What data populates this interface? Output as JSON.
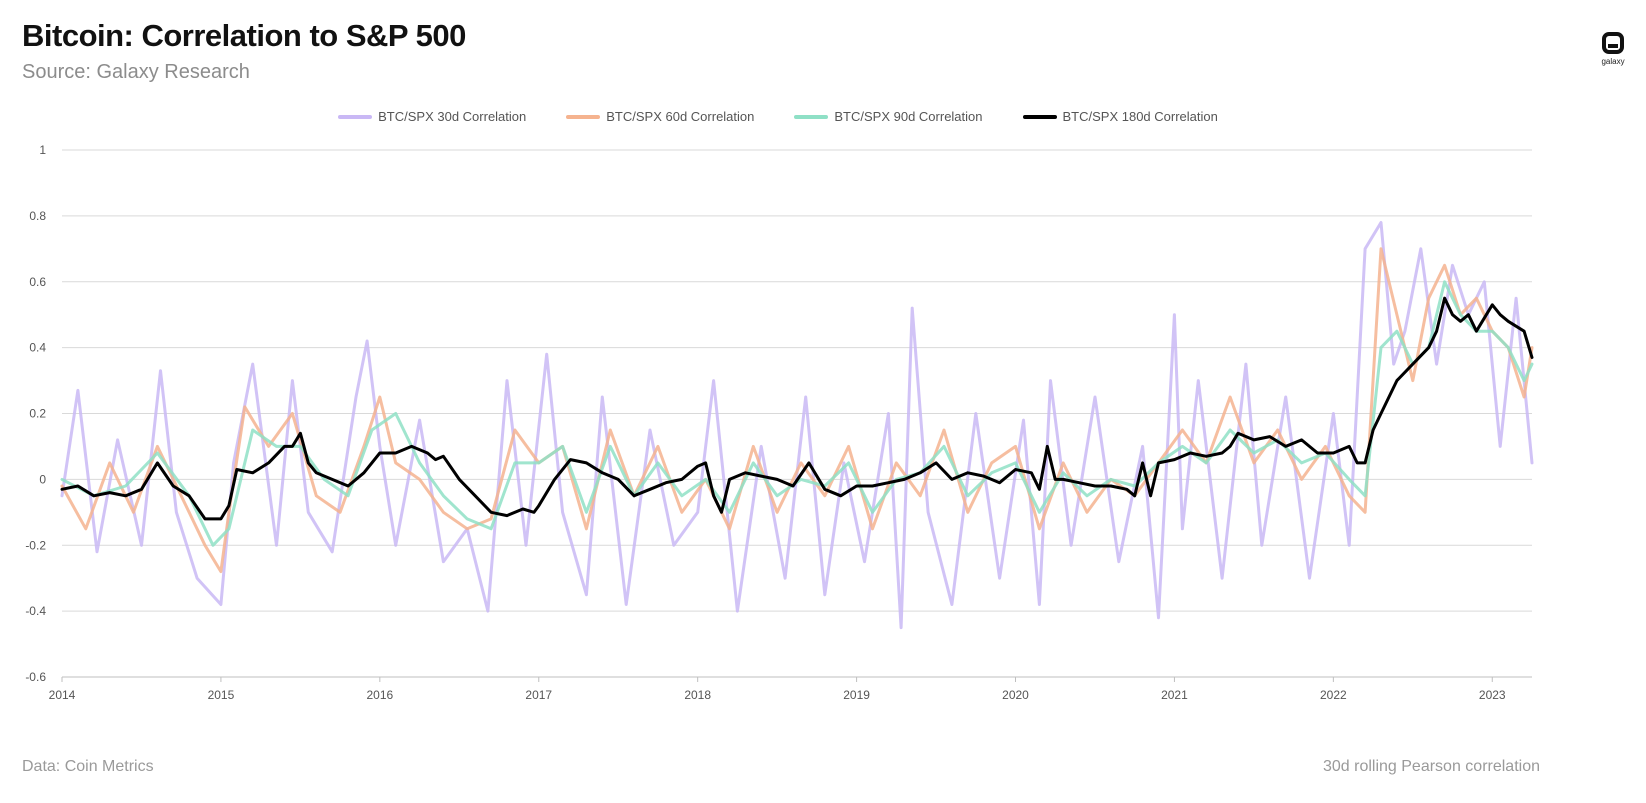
{
  "header": {
    "title": "Bitcoin: Correlation to S&P 500",
    "subtitle": "Source: Galaxy Research",
    "logo_text": "galaxy"
  },
  "footer": {
    "left": "Data: Coin Metrics",
    "right": "30d rolling Pearson correlation"
  },
  "colors": {
    "grid": "#d9d9d9",
    "axis": "#bfbfbf"
  },
  "chart_data": {
    "type": "line",
    "title": "Bitcoin: Correlation to S&P 500",
    "xlabel": "",
    "ylabel": "",
    "xlim": [
      2014,
      2023.25
    ],
    "ylim": [
      -0.6,
      1
    ],
    "yticks": [
      1,
      0.8,
      0.6,
      0.4,
      0.2,
      0,
      -0.2,
      -0.4,
      -0.6
    ],
    "ytick_labels": [
      "1",
      "0.8",
      "0.6",
      "0.4",
      "0.2",
      "0",
      "-0.2",
      "-0.4",
      "-0.6"
    ],
    "xticks": [
      2014,
      2015,
      2016,
      2017,
      2018,
      2019,
      2020,
      2021,
      2022,
      2023
    ],
    "xtick_labels": [
      "2014",
      "2015",
      "2016",
      "2017",
      "2018",
      "2019",
      "2020",
      "2021",
      "2022",
      "2023"
    ],
    "legend_position": "top-center",
    "grid": true,
    "series": [
      {
        "name": "BTC/SPX 30d Correlation",
        "color": "#c9b8f5",
        "width": 3,
        "x": [
          2014.0,
          2014.1,
          2014.22,
          2014.35,
          2014.5,
          2014.62,
          2014.72,
          2014.85,
          2015.0,
          2015.08,
          2015.2,
          2015.35,
          2015.45,
          2015.55,
          2015.7,
          2015.85,
          2015.92,
          2016.0,
          2016.1,
          2016.25,
          2016.4,
          2016.55,
          2016.68,
          2016.8,
          2016.92,
          2017.05,
          2017.15,
          2017.3,
          2017.4,
          2017.55,
          2017.7,
          2017.85,
          2018.0,
          2018.1,
          2018.25,
          2018.4,
          2018.55,
          2018.68,
          2018.8,
          2018.92,
          2019.05,
          2019.2,
          2019.28,
          2019.35,
          2019.45,
          2019.6,
          2019.75,
          2019.9,
          2020.05,
          2020.15,
          2020.22,
          2020.35,
          2020.5,
          2020.65,
          2020.8,
          2020.9,
          2021.0,
          2021.05,
          2021.15,
          2021.3,
          2021.45,
          2021.55,
          2021.7,
          2021.85,
          2022.0,
          2022.1,
          2022.2,
          2022.3,
          2022.38,
          2022.45,
          2022.55,
          2022.65,
          2022.75,
          2022.85,
          2022.95,
          2023.05,
          2023.15,
          2023.25
        ],
        "y": [
          -0.05,
          0.27,
          -0.22,
          0.12,
          -0.2,
          0.33,
          -0.1,
          -0.3,
          -0.38,
          0.05,
          0.35,
          -0.2,
          0.3,
          -0.1,
          -0.22,
          0.25,
          0.42,
          0.1,
          -0.2,
          0.18,
          -0.25,
          -0.15,
          -0.4,
          0.3,
          -0.2,
          0.38,
          -0.1,
          -0.35,
          0.25,
          -0.38,
          0.15,
          -0.2,
          -0.1,
          0.3,
          -0.4,
          0.1,
          -0.3,
          0.25,
          -0.35,
          0.05,
          -0.25,
          0.2,
          -0.45,
          0.52,
          -0.1,
          -0.38,
          0.2,
          -0.3,
          0.18,
          -0.38,
          0.3,
          -0.2,
          0.25,
          -0.25,
          0.1,
          -0.42,
          0.5,
          -0.15,
          0.3,
          -0.3,
          0.35,
          -0.2,
          0.25,
          -0.3,
          0.2,
          -0.2,
          0.7,
          0.78,
          0.35,
          0.45,
          0.7,
          0.35,
          0.65,
          0.5,
          0.6,
          0.1,
          0.55,
          0.05
        ]
      },
      {
        "name": "BTC/SPX 60d Correlation",
        "color": "#f5b38f",
        "width": 3,
        "x": [
          2014.0,
          2014.15,
          2014.3,
          2014.45,
          2014.6,
          2014.75,
          2014.9,
          2015.0,
          2015.05,
          2015.15,
          2015.3,
          2015.45,
          2015.6,
          2015.75,
          2015.9,
          2016.0,
          2016.1,
          2016.25,
          2016.4,
          2016.55,
          2016.7,
          2016.85,
          2017.0,
          2017.15,
          2017.3,
          2017.45,
          2017.6,
          2017.75,
          2017.9,
          2018.05,
          2018.2,
          2018.35,
          2018.5,
          2018.65,
          2018.8,
          2018.95,
          2019.1,
          2019.25,
          2019.4,
          2019.55,
          2019.7,
          2019.85,
          2020.0,
          2020.15,
          2020.3,
          2020.45,
          2020.6,
          2020.75,
          2020.9,
          2021.05,
          2021.2,
          2021.35,
          2021.5,
          2021.65,
          2021.8,
          2021.95,
          2022.1,
          2022.2,
          2022.3,
          2022.4,
          2022.5,
          2022.6,
          2022.7,
          2022.8,
          2022.9,
          2023.0,
          2023.1,
          2023.2,
          2023.25
        ],
        "y": [
          -0.02,
          -0.15,
          0.05,
          -0.1,
          0.1,
          -0.05,
          -0.2,
          -0.28,
          -0.1,
          0.22,
          0.1,
          0.2,
          -0.05,
          -0.1,
          0.1,
          0.25,
          0.05,
          0.0,
          -0.1,
          -0.15,
          -0.12,
          0.15,
          0.05,
          0.1,
          -0.15,
          0.15,
          -0.05,
          0.1,
          -0.1,
          0.0,
          -0.15,
          0.1,
          -0.1,
          0.05,
          -0.05,
          0.1,
          -0.15,
          0.05,
          -0.05,
          0.15,
          -0.1,
          0.05,
          0.1,
          -0.15,
          0.05,
          -0.1,
          0.0,
          -0.05,
          0.05,
          0.15,
          0.05,
          0.25,
          0.05,
          0.15,
          0.0,
          0.1,
          -0.05,
          -0.1,
          0.7,
          0.5,
          0.3,
          0.55,
          0.65,
          0.5,
          0.55,
          0.45,
          0.4,
          0.25,
          0.4
        ]
      },
      {
        "name": "BTC/SPX 90d Correlation",
        "color": "#8fe0c6",
        "width": 3,
        "x": [
          2014.0,
          2014.2,
          2014.4,
          2014.6,
          2014.8,
          2014.95,
          2015.05,
          2015.2,
          2015.35,
          2015.5,
          2015.65,
          2015.8,
          2015.95,
          2016.1,
          2016.25,
          2016.4,
          2016.55,
          2016.7,
          2016.85,
          2017.0,
          2017.15,
          2017.3,
          2017.45,
          2017.6,
          2017.75,
          2017.9,
          2018.05,
          2018.2,
          2018.35,
          2018.5,
          2018.65,
          2018.8,
          2018.95,
          2019.1,
          2019.25,
          2019.4,
          2019.55,
          2019.7,
          2019.85,
          2020.0,
          2020.15,
          2020.3,
          2020.45,
          2020.6,
          2020.75,
          2020.9,
          2021.05,
          2021.2,
          2021.35,
          2021.5,
          2021.65,
          2021.8,
          2021.95,
          2022.1,
          2022.2,
          2022.3,
          2022.4,
          2022.5,
          2022.6,
          2022.7,
          2022.8,
          2022.9,
          2023.0,
          2023.1,
          2023.2,
          2023.25
        ],
        "y": [
          0.0,
          -0.05,
          -0.02,
          0.08,
          -0.05,
          -0.2,
          -0.15,
          0.15,
          0.1,
          0.1,
          0.0,
          -0.05,
          0.15,
          0.2,
          0.05,
          -0.05,
          -0.12,
          -0.15,
          0.05,
          0.05,
          0.1,
          -0.1,
          0.1,
          -0.05,
          0.05,
          -0.05,
          0.0,
          -0.1,
          0.05,
          -0.05,
          0.0,
          -0.02,
          0.05,
          -0.1,
          0.0,
          0.02,
          0.1,
          -0.05,
          0.02,
          0.05,
          -0.1,
          0.02,
          -0.05,
          0.0,
          -0.02,
          0.05,
          0.1,
          0.05,
          0.15,
          0.08,
          0.12,
          0.05,
          0.08,
          0.0,
          -0.05,
          0.4,
          0.45,
          0.35,
          0.4,
          0.6,
          0.5,
          0.45,
          0.45,
          0.4,
          0.3,
          0.35
        ]
      },
      {
        "name": "BTC/SPX 180d Correlation",
        "color": "#000000",
        "width": 3,
        "x": [
          2014.0,
          2014.1,
          2014.2,
          2014.3,
          2014.4,
          2014.5,
          2014.6,
          2014.7,
          2014.8,
          2014.9,
          2015.0,
          2015.05,
          2015.1,
          2015.2,
          2015.3,
          2015.4,
          2015.45,
          2015.5,
          2015.55,
          2015.6,
          2015.7,
          2015.8,
          2015.9,
          2016.0,
          2016.1,
          2016.2,
          2016.3,
          2016.35,
          2016.4,
          2016.5,
          2016.6,
          2016.7,
          2016.8,
          2016.9,
          2016.97,
          2017.0,
          2017.1,
          2017.2,
          2017.3,
          2017.4,
          2017.5,
          2017.6,
          2017.7,
          2017.8,
          2017.9,
          2018.0,
          2018.05,
          2018.1,
          2018.15,
          2018.2,
          2018.3,
          2018.4,
          2018.5,
          2018.6,
          2018.7,
          2018.8,
          2018.9,
          2019.0,
          2019.1,
          2019.2,
          2019.3,
          2019.4,
          2019.5,
          2019.6,
          2019.7,
          2019.8,
          2019.9,
          2020.0,
          2020.1,
          2020.15,
          2020.2,
          2020.25,
          2020.3,
          2020.4,
          2020.5,
          2020.6,
          2020.7,
          2020.75,
          2020.8,
          2020.85,
          2020.9,
          2021.0,
          2021.1,
          2021.2,
          2021.3,
          2021.35,
          2021.4,
          2021.5,
          2021.6,
          2021.7,
          2021.8,
          2021.9,
          2022.0,
          2022.1,
          2022.15,
          2022.2,
          2022.25,
          2022.3,
          2022.4,
          2022.5,
          2022.6,
          2022.65,
          2022.7,
          2022.75,
          2022.8,
          2022.85,
          2022.9,
          2023.0,
          2023.05,
          2023.1,
          2023.2,
          2023.25
        ],
        "y": [
          -0.03,
          -0.02,
          -0.05,
          -0.04,
          -0.05,
          -0.03,
          0.05,
          -0.02,
          -0.05,
          -0.12,
          -0.12,
          -0.08,
          0.03,
          0.02,
          0.05,
          0.1,
          0.1,
          0.14,
          0.05,
          0.02,
          0.0,
          -0.02,
          0.02,
          0.08,
          0.08,
          0.1,
          0.08,
          0.06,
          0.07,
          0.0,
          -0.05,
          -0.1,
          -0.11,
          -0.09,
          -0.1,
          -0.08,
          0.0,
          0.06,
          0.05,
          0.02,
          0.0,
          -0.05,
          -0.03,
          -0.01,
          0.0,
          0.04,
          0.05,
          -0.05,
          -0.1,
          0.0,
          0.02,
          0.01,
          0.0,
          -0.02,
          0.05,
          -0.03,
          -0.05,
          -0.02,
          -0.02,
          -0.01,
          0.0,
          0.02,
          0.05,
          0.0,
          0.02,
          0.01,
          -0.01,
          0.03,
          0.02,
          -0.03,
          0.1,
          0.0,
          0.0,
          -0.01,
          -0.02,
          -0.02,
          -0.03,
          -0.05,
          0.05,
          -0.05,
          0.05,
          0.06,
          0.08,
          0.07,
          0.08,
          0.1,
          0.14,
          0.12,
          0.13,
          0.1,
          0.12,
          0.08,
          0.08,
          0.1,
          0.05,
          0.05,
          0.15,
          0.2,
          0.3,
          0.35,
          0.4,
          0.45,
          0.55,
          0.5,
          0.48,
          0.5,
          0.45,
          0.53,
          0.5,
          0.48,
          0.45,
          0.37
        ]
      }
    ]
  }
}
